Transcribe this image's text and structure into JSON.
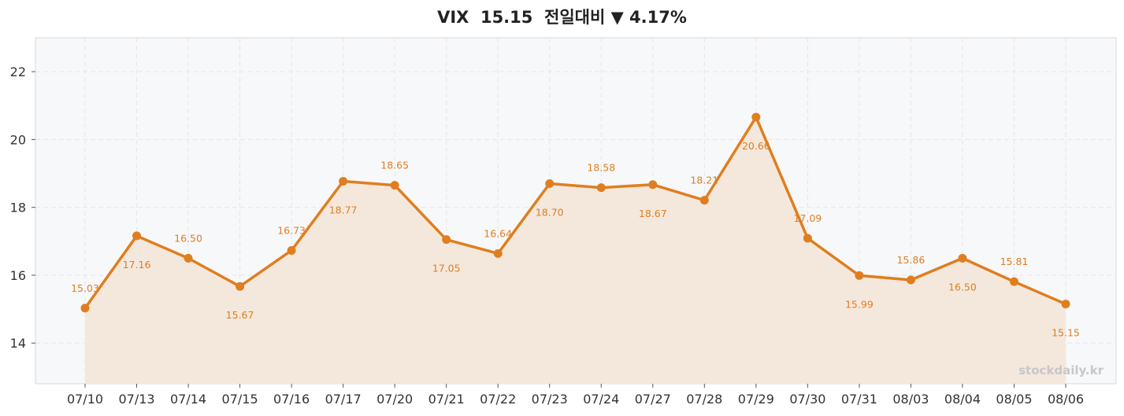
{
  "chart_data": {
    "type": "line",
    "title": "VIX  15.15  전일대비 ▼ 4.17%",
    "xlabel": "",
    "ylabel": "",
    "categories": [
      "07/10",
      "07/13",
      "07/14",
      "07/15",
      "07/16",
      "07/17",
      "07/20",
      "07/21",
      "07/22",
      "07/23",
      "07/24",
      "07/27",
      "07/28",
      "07/29",
      "07/30",
      "07/31",
      "08/03",
      "08/04",
      "08/05",
      "08/06"
    ],
    "series": [
      {
        "values": [
          15.03,
          17.16,
          16.5,
          15.67,
          16.73,
          18.77,
          18.65,
          17.05,
          16.64,
          18.7,
          18.58,
          18.67,
          18.21,
          20.66,
          17.09,
          15.99,
          15.86,
          16.5,
          15.81,
          15.15
        ],
        "labels": [
          "15.03",
          "17.16",
          "16.50",
          "15.67",
          "16.73",
          "18.77",
          "18.65",
          "17.05",
          "16.64",
          "18.70",
          "18.58",
          "18.67",
          "18.21",
          "20.66",
          "17.09",
          "15.99",
          "15.86",
          "16.50",
          "15.81",
          "15.15"
        ],
        "label_side": [
          "above",
          "below",
          "above",
          "below",
          "above",
          "below",
          "above",
          "below",
          "above",
          "below",
          "above",
          "below",
          "above",
          "below",
          "above",
          "below",
          "above",
          "below",
          "above",
          "below"
        ]
      }
    ],
    "ylim": [
      12.8,
      23.0
    ],
    "yticks": [
      14,
      16,
      18,
      20,
      22
    ],
    "grid": true,
    "area_fill": true,
    "colors": {
      "line": "#e07e1f",
      "fill": "#f4e8dd",
      "plot_bg": "#f7f8fa",
      "grid": "#e6e6ea",
      "frame": "#d9d9de"
    },
    "watermark": "stockdaily.kr"
  }
}
